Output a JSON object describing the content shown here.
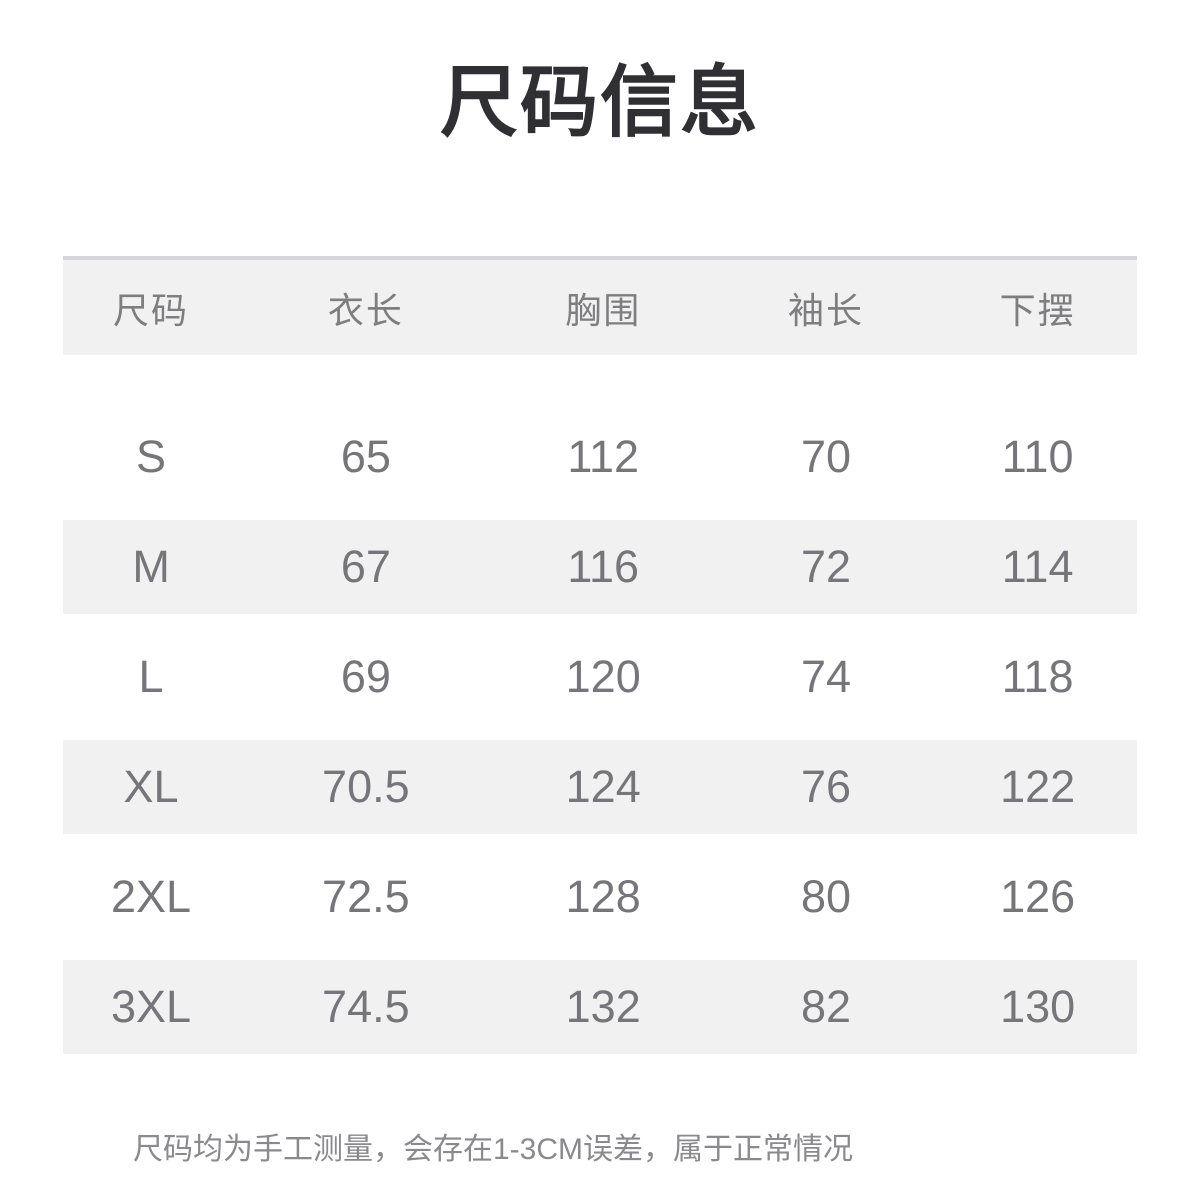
{
  "page": {
    "title": "尺码信息",
    "note": "尺码均为手工测量，会存在1-3CM误差，属于正常情况"
  },
  "size_table": {
    "columns": [
      "尺码",
      "衣长",
      "胸围",
      "袖长",
      "下摆"
    ],
    "rows": [
      {
        "size": "S",
        "values": [
          "65",
          "112",
          "70",
          "110"
        ]
      },
      {
        "size": "M",
        "values": [
          "67",
          "116",
          "72",
          "114"
        ]
      },
      {
        "size": "L",
        "values": [
          "69",
          "120",
          "74",
          "118"
        ]
      },
      {
        "size": "XL",
        "values": [
          "70.5",
          "124",
          "76",
          "122"
        ]
      },
      {
        "size": "2XL",
        "values": [
          "72.5",
          "128",
          "80",
          "126"
        ]
      },
      {
        "size": "3XL",
        "values": [
          "74.5",
          "132",
          "82",
          "130"
        ]
      }
    ]
  },
  "chart_data": {
    "type": "table",
    "title": "尺码信息",
    "columns": [
      "尺码",
      "衣长",
      "胸围",
      "袖长",
      "下摆"
    ],
    "rows": [
      [
        "S",
        65,
        112,
        70,
        110
      ],
      [
        "M",
        67,
        116,
        72,
        114
      ],
      [
        "L",
        69,
        120,
        74,
        118
      ],
      [
        "XL",
        70.5,
        124,
        76,
        122
      ],
      [
        "2XL",
        72.5,
        128,
        80,
        126
      ],
      [
        "3XL",
        74.5,
        132,
        82,
        130
      ]
    ],
    "note": "尺码均为手工测量，会存在1-3CM误差，属于正常情况",
    "layout": {
      "striped_rows": [
        "M",
        "XL",
        "3XL"
      ],
      "header_background": true
    }
  },
  "colors": {
    "header_bg": "#f1f1f2",
    "stripe_bg": "#f1f1f2",
    "header_top_border": "#d6d6d8",
    "title_text": "#303034",
    "header_text": "#7e7e81",
    "cell_text": "#76767a",
    "note_text": "#8a8a8e",
    "background": "#ffffff"
  }
}
